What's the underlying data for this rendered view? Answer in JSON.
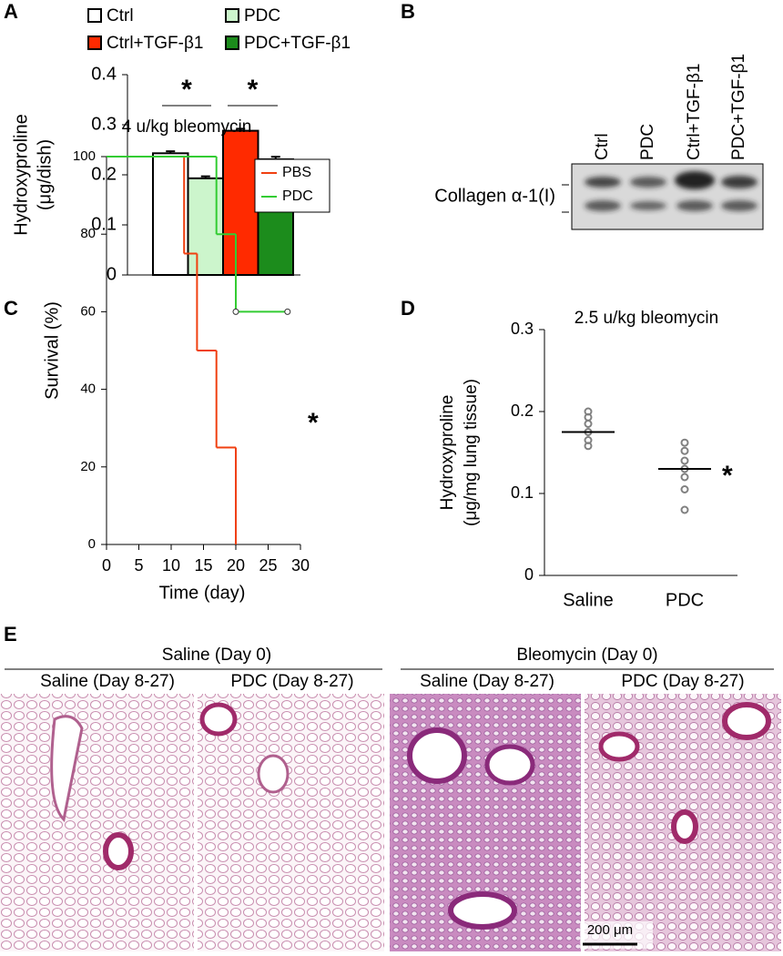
{
  "panel_labels": [
    "A",
    "B",
    "C",
    "D",
    "E"
  ],
  "chart_data": [
    {
      "type": "bar",
      "ylabel": [
        "Hydroxyproline",
        "(μg/dish)"
      ],
      "categories": [
        "Ctrl",
        "PDC",
        "Ctrl+TGF-β1",
        "PDC+TGF-β1"
      ],
      "values": [
        0.243,
        0.193,
        0.288,
        0.231
      ],
      "errors": [
        0.004,
        0.004,
        0.004,
        0.005
      ],
      "colors": [
        "#ffffff",
        "#ccf5cc",
        "#ff2a00",
        "#1c8c1c"
      ],
      "ylim": [
        0,
        0.4
      ],
      "yticks": [
        0,
        0.1,
        0.2,
        0.3,
        0.4
      ],
      "annotations": [
        "*",
        "*"
      ]
    },
    {
      "type": "step",
      "title": "4 u/kg bleomycin",
      "xlabel": "Time (day)",
      "ylabel": "Survival (%)",
      "series": [
        {
          "name": "PBS",
          "color": "#f04010",
          "x": [
            0,
            12,
            14,
            17,
            20
          ],
          "values": [
            100,
            75,
            50,
            25,
            0
          ],
          "censored": [
            false,
            false,
            false,
            false,
            false
          ]
        },
        {
          "name": "PDC",
          "color": "#33cc33",
          "x": [
            0,
            17,
            20,
            28
          ],
          "values": [
            100,
            80,
            60,
            60
          ],
          "censored": [
            false,
            false,
            true,
            true
          ]
        }
      ],
      "xlim": [
        0,
        30
      ],
      "xticks": [
        0,
        5,
        10,
        15,
        20,
        25,
        30
      ],
      "ylim": [
        0,
        100
      ],
      "yticks": [
        0,
        20,
        40,
        60,
        80,
        100
      ],
      "annotations": [
        "*"
      ]
    },
    {
      "type": "dot",
      "title": "2.5 u/kg bleomycin",
      "ylabel": [
        "Hydroxyproline",
        "(μg/mg lung tissue)"
      ],
      "categories": [
        "Saline",
        "PDC"
      ],
      "points": [
        [
          0.2,
          0.193,
          0.185,
          0.175,
          0.165,
          0.158
        ],
        [
          0.162,
          0.152,
          0.14,
          0.13,
          0.12,
          0.105,
          0.08
        ]
      ],
      "means": [
        0.175,
        0.13
      ],
      "color": "#808080",
      "ylim": [
        0,
        0.3
      ],
      "yticks": [
        0,
        0.1,
        0.2,
        0.3
      ],
      "annotations": [
        "*"
      ]
    }
  ],
  "blot": {
    "lanes": [
      "Ctrl",
      "PDC",
      "Ctrl+TGF-β1",
      "PDC+TGF-β1"
    ],
    "label": "Collagen α-1(I)"
  },
  "histology": {
    "groups": [
      {
        "title": "Saline (Day 0)",
        "panels": [
          "Saline (Day 8-27)",
          "PDC (Day 8-27)"
        ]
      },
      {
        "title": "Bleomycin (Day 0)",
        "panels": [
          "Saline (Day 8-27)",
          "PDC (Day 8-27)"
        ]
      }
    ],
    "scale_bar": "200 μm"
  }
}
